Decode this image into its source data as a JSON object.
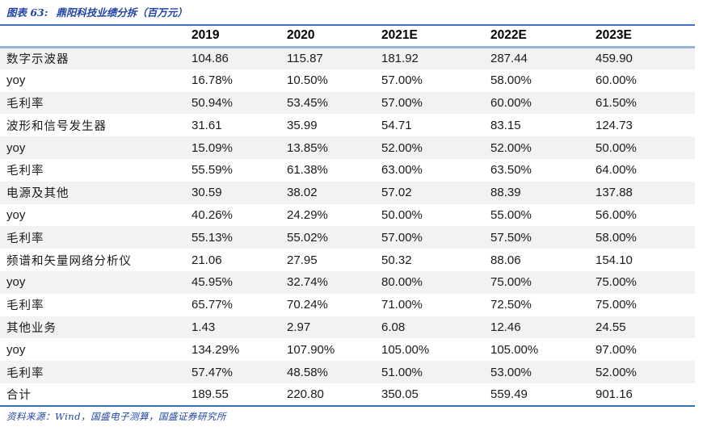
{
  "header": {
    "exhibit_label": "图表 63:",
    "title": "鼎阳科技业绩分拆（百万元）"
  },
  "footer": {
    "source": "资料来源：Wind，国盛电子测算，国盛证券研究所"
  },
  "colors": {
    "accent_blue": "#2144A4",
    "table_top_border": "#4472C4",
    "header_rule": "#95B3D7",
    "table_bottom_border": "#2E74B5",
    "row_alt_background": "#F2F2F2",
    "text": "#1A1A1A"
  },
  "chart_data": {
    "type": "table",
    "title": "鼎阳科技业绩分拆（百万元）",
    "columns": [
      "",
      "2019",
      "2020",
      "2021E",
      "2022E",
      "2023E"
    ],
    "rows": [
      [
        "数字示波器",
        "104.86",
        "115.87",
        "181.92",
        "287.44",
        "459.90"
      ],
      [
        "yoy",
        "16.78%",
        "10.50%",
        "57.00%",
        "58.00%",
        "60.00%"
      ],
      [
        "毛利率",
        "50.94%",
        "53.45%",
        "57.00%",
        "60.00%",
        "61.50%"
      ],
      [
        "波形和信号发生器",
        "31.61",
        "35.99",
        "54.71",
        "83.15",
        "124.73"
      ],
      [
        "yoy",
        "15.09%",
        "13.85%",
        "52.00%",
        "52.00%",
        "50.00%"
      ],
      [
        "毛利率",
        "55.59%",
        "61.38%",
        "63.00%",
        "63.50%",
        "64.00%"
      ],
      [
        "电源及其他",
        "30.59",
        "38.02",
        "57.02",
        "88.39",
        "137.88"
      ],
      [
        "yoy",
        "40.26%",
        "24.29%",
        "50.00%",
        "55.00%",
        "56.00%"
      ],
      [
        "毛利率",
        "55.13%",
        "55.02%",
        "57.00%",
        "57.50%",
        "58.00%"
      ],
      [
        "频谱和矢量网络分析仪",
        "21.06",
        "27.95",
        "50.32",
        "88.06",
        "154.10"
      ],
      [
        "yoy",
        "45.95%",
        "32.74%",
        "80.00%",
        "75.00%",
        "75.00%"
      ],
      [
        "毛利率",
        "65.77%",
        "70.24%",
        "71.00%",
        "72.50%",
        "75.00%"
      ],
      [
        "其他业务",
        "1.43",
        "2.97",
        "6.08",
        "12.46",
        "24.55"
      ],
      [
        "yoy",
        "134.29%",
        "107.90%",
        "105.00%",
        "105.00%",
        "97.00%"
      ],
      [
        "毛利率",
        "57.47%",
        "48.58%",
        "51.00%",
        "53.00%",
        "52.00%"
      ],
      [
        "合计",
        "189.55",
        "220.80",
        "350.05",
        "559.49",
        "901.16"
      ]
    ]
  }
}
